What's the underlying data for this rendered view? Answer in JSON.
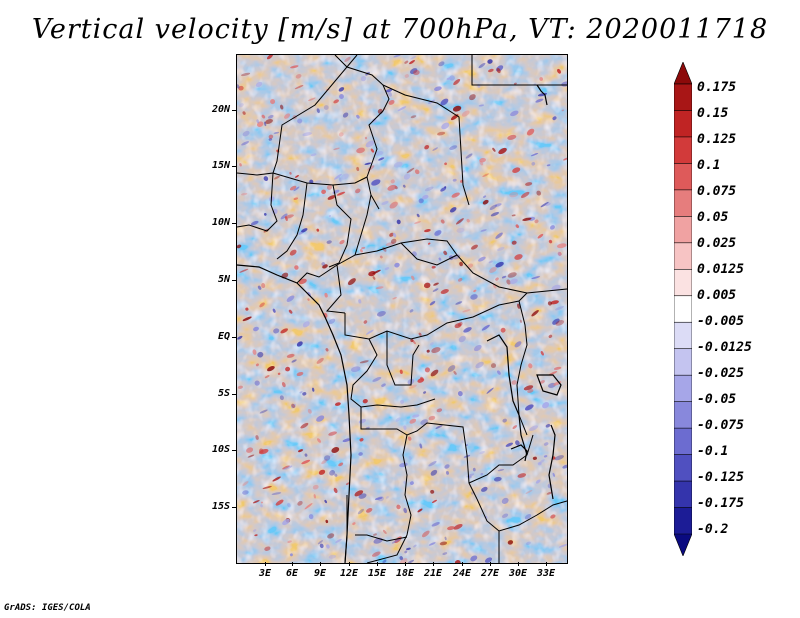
{
  "title": "Vertical velocity [m/s] at 700hPa, VT: 2020011718",
  "footer": "GrADS: IGES/COLA",
  "map": {
    "variable": "Vertical velocity",
    "units": "m/s",
    "level": "700hPa",
    "valid_time": "2020011718",
    "lat_labels": [
      "20N",
      "15N",
      "10N",
      "5N",
      "EQ",
      "5S",
      "10S",
      "15S"
    ],
    "lon_labels": [
      "3E",
      "6E",
      "9E",
      "12E",
      "15E",
      "18E",
      "21E",
      "24E",
      "27E",
      "30E",
      "33E"
    ]
  },
  "colorbar": {
    "labels": [
      "0.175",
      "0.15",
      "0.125",
      "0.1",
      "0.075",
      "0.05",
      "0.025",
      "0.0125",
      "0.005",
      "-0.005",
      "-0.0125",
      "-0.025",
      "-0.05",
      "-0.075",
      "-0.1",
      "-0.125",
      "-0.175",
      "-0.2"
    ],
    "colors": [
      "#8c0a0a",
      "#a81616",
      "#c02424",
      "#d23a3a",
      "#de5a5a",
      "#e67d7d",
      "#f0a2a2",
      "#f7c4c4",
      "#fbe2e2",
      "#ffffff",
      "#dcdcf6",
      "#c4c4f0",
      "#a6a6e8",
      "#8888dc",
      "#6c6cd0",
      "#5050c0",
      "#3434ac",
      "#1c1c96",
      "#0a0a80"
    ]
  }
}
